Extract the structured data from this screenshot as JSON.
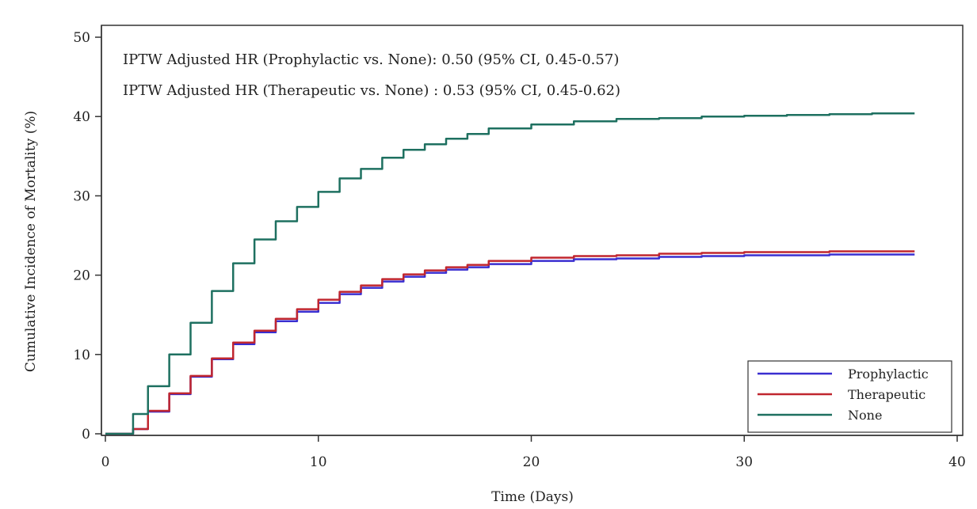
{
  "chart_data": {
    "type": "line",
    "xlabel": "Time (Days)",
    "ylabel": "Cumulative Incidence of Mortality (%)",
    "xlim": [
      0,
      40
    ],
    "ylim": [
      0,
      50
    ],
    "xticks": [
      0,
      10,
      20,
      30,
      40
    ],
    "yticks": [
      0,
      10,
      20,
      30,
      40,
      50
    ],
    "grid": false,
    "legend_position": "bottom-right",
    "annotations": [
      "IPTW Adjusted HR (Prophylactic vs. None): 0.50 (95% CI, 0.45-0.57)",
      "IPTW Adjusted HR (Therapeutic vs. None) : 0.53 (95% CI, 0.45-0.62)"
    ],
    "series": [
      {
        "name": "Prophylactic",
        "color": "#3a2fd0",
        "x": [
          0,
          1.0,
          1.3,
          2,
          3,
          4,
          5,
          6,
          7,
          8,
          9,
          10,
          11,
          12,
          13,
          14,
          15,
          16,
          17,
          18,
          20,
          22,
          24,
          26,
          28,
          30,
          32,
          34,
          36,
          38
        ],
        "y": [
          0,
          0,
          0.6,
          2.8,
          5.0,
          7.2,
          9.4,
          11.3,
          12.8,
          14.2,
          15.4,
          16.5,
          17.6,
          18.4,
          19.2,
          19.8,
          20.3,
          20.7,
          21.0,
          21.4,
          21.8,
          22.0,
          22.1,
          22.3,
          22.4,
          22.5,
          22.5,
          22.6,
          22.6,
          22.6
        ]
      },
      {
        "name": "Therapeutic",
        "color": "#c0262f",
        "x": [
          0,
          1.0,
          1.3,
          2,
          3,
          4,
          5,
          6,
          7,
          8,
          9,
          10,
          11,
          12,
          13,
          14,
          15,
          16,
          17,
          18,
          20,
          22,
          24,
          26,
          28,
          30,
          32,
          34,
          36,
          38
        ],
        "y": [
          0,
          0,
          0.6,
          2.9,
          5.1,
          7.3,
          9.5,
          11.5,
          13.0,
          14.5,
          15.7,
          16.9,
          17.9,
          18.7,
          19.5,
          20.1,
          20.6,
          21.0,
          21.3,
          21.8,
          22.2,
          22.4,
          22.5,
          22.7,
          22.8,
          22.9,
          22.9,
          23.0,
          23.0,
          23.0
        ]
      },
      {
        "name": "None",
        "color": "#1e7060",
        "x": [
          0,
          1.0,
          1.3,
          2,
          3,
          4,
          5,
          6,
          7,
          8,
          9,
          10,
          11,
          12,
          13,
          14,
          15,
          16,
          17,
          18,
          20,
          22,
          24,
          26,
          28,
          30,
          32,
          34,
          36,
          38
        ],
        "y": [
          0,
          0,
          2.5,
          6.0,
          10.0,
          14.0,
          18.0,
          21.5,
          24.5,
          26.8,
          28.6,
          30.5,
          32.2,
          33.4,
          34.8,
          35.8,
          36.5,
          37.2,
          37.8,
          38.5,
          39.0,
          39.4,
          39.7,
          39.8,
          40.0,
          40.1,
          40.2,
          40.3,
          40.4,
          40.4
        ]
      }
    ]
  }
}
